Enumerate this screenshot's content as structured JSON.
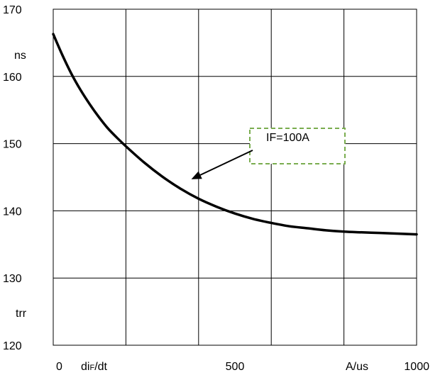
{
  "chart_data": {
    "type": "line",
    "title": "",
    "xlim": [
      0,
      1000
    ],
    "ylim": [
      120,
      170
    ],
    "x_ticks": [
      0,
      500,
      1000
    ],
    "y_ticks": [
      120,
      130,
      140,
      150,
      160,
      170
    ],
    "x_tick_labels": [
      "0",
      "500",
      "1000"
    ],
    "y_tick_labels": [
      "120",
      "130",
      "140",
      "150",
      "160",
      "170"
    ],
    "x_label": "diF/dt",
    "x_unit": "A/us",
    "y_label": "trr",
    "y_unit": "ns",
    "grid": true,
    "series": [
      {
        "name": "IF=100A",
        "color": "#000000",
        "x": [
          0,
          25,
          50,
          75,
          100,
          125,
          150,
          175,
          200,
          250,
          300,
          350,
          400,
          450,
          500,
          550,
          600,
          650,
          700,
          750,
          800,
          850,
          900,
          950,
          1000
        ],
        "y": [
          166.3,
          163.2,
          160.4,
          158.0,
          155.9,
          154.0,
          152.3,
          150.9,
          149.6,
          147.2,
          145.1,
          143.3,
          141.8,
          140.6,
          139.6,
          138.8,
          138.2,
          137.7,
          137.4,
          137.1,
          136.9,
          136.8,
          136.7,
          136.6,
          136.5
        ]
      }
    ],
    "annotation": {
      "text": "IF=100A",
      "box_color": "#7aad4f",
      "points_to": {
        "x": 380,
        "y": 144.7
      }
    }
  }
}
